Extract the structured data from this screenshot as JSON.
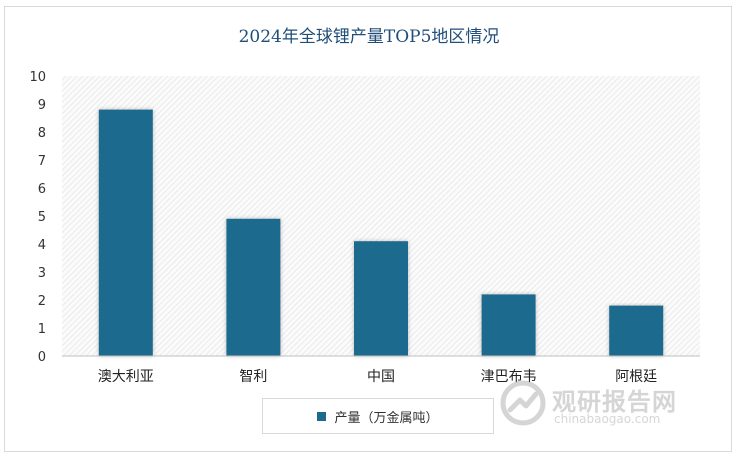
{
  "chart_data": {
    "type": "bar",
    "title": "2024年全球锂产量TOP5地区情况",
    "categories": [
      "澳大利亚",
      "智利",
      "中国",
      "津巴布韦",
      "阿根廷"
    ],
    "series": [
      {
        "name": "产量（万金属吨）",
        "values": [
          8.8,
          4.9,
          4.1,
          2.2,
          1.8
        ]
      }
    ],
    "ylim": [
      0,
      10
    ],
    "yticks": [
      "0",
      "1",
      "2",
      "3",
      "4",
      "5",
      "6",
      "7",
      "8",
      "9",
      "10"
    ],
    "xlabel": "",
    "ylabel": "",
    "grid": false,
    "legend": "bottom",
    "bar_color": "#1e6a8d",
    "plot_background": "hatched-light-gray"
  },
  "watermark": {
    "text_cn": "观研报告网",
    "text_en": "chinabaogao.com"
  }
}
